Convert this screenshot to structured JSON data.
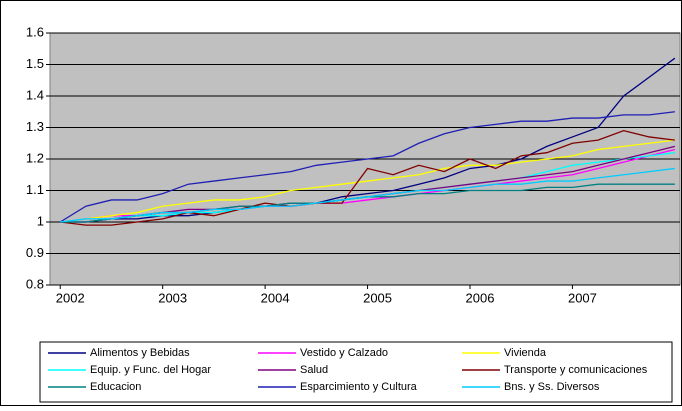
{
  "chart_data": {
    "type": "line",
    "x": [
      2002,
      2002.25,
      2002.5,
      2002.75,
      2003,
      2003.25,
      2003.5,
      2003.75,
      2004,
      2004.25,
      2004.5,
      2004.75,
      2005,
      2005.25,
      2005.5,
      2005.75,
      2006,
      2006.25,
      2006.5,
      2006.75,
      2007,
      2007.25,
      2007.5,
      2007.75,
      2008
    ],
    "xlim": [
      2001.9,
      2008.05
    ],
    "xticks": [
      2002,
      2003,
      2004,
      2005,
      2006,
      2007
    ],
    "ylim": [
      0.8,
      1.6
    ],
    "yticks": [
      0.8,
      0.9,
      1,
      1.1,
      1.2,
      1.3,
      1.4,
      1.5,
      1.6
    ],
    "grid": true,
    "legend": "bottom",
    "series": [
      {
        "name": "Alimentos y Bebidas",
        "color": "#000080",
        "values": [
          1.0,
          1.0,
          1.01,
          1.01,
          1.02,
          1.02,
          1.03,
          1.04,
          1.05,
          1.06,
          1.06,
          1.08,
          1.09,
          1.1,
          1.12,
          1.14,
          1.17,
          1.18,
          1.2,
          1.24,
          1.27,
          1.3,
          1.4,
          1.46,
          1.52
        ]
      },
      {
        "name": "Vestido y Calzado",
        "color": "#ff00ff",
        "values": [
          1.0,
          1.01,
          1.02,
          1.02,
          1.03,
          1.03,
          1.04,
          1.04,
          1.05,
          1.05,
          1.06,
          1.06,
          1.07,
          1.08,
          1.09,
          1.1,
          1.11,
          1.12,
          1.13,
          1.14,
          1.15,
          1.17,
          1.19,
          1.21,
          1.23
        ]
      },
      {
        "name": "Vivienda",
        "color": "#ffff00",
        "values": [
          1.0,
          1.01,
          1.02,
          1.03,
          1.05,
          1.06,
          1.07,
          1.07,
          1.08,
          1.1,
          1.11,
          1.12,
          1.13,
          1.14,
          1.15,
          1.17,
          1.18,
          1.18,
          1.19,
          1.2,
          1.21,
          1.23,
          1.24,
          1.25,
          1.26
        ]
      },
      {
        "name": "Equip. y Func. del Hogar",
        "color": "#00ffff",
        "values": [
          1.0,
          1.01,
          1.01,
          1.02,
          1.02,
          1.03,
          1.03,
          1.04,
          1.05,
          1.06,
          1.06,
          1.07,
          1.08,
          1.09,
          1.1,
          1.11,
          1.12,
          1.13,
          1.14,
          1.16,
          1.18,
          1.19,
          1.2,
          1.21,
          1.22
        ]
      },
      {
        "name": "Salud",
        "color": "#800080",
        "values": [
          1.0,
          1.0,
          1.01,
          1.02,
          1.03,
          1.04,
          1.04,
          1.05,
          1.05,
          1.06,
          1.06,
          1.07,
          1.08,
          1.09,
          1.1,
          1.11,
          1.12,
          1.13,
          1.14,
          1.15,
          1.16,
          1.18,
          1.2,
          1.22,
          1.24
        ]
      },
      {
        "name": "Transporte y comunicaciones",
        "color": "#800000",
        "values": [
          1.0,
          0.99,
          0.99,
          1.0,
          1.01,
          1.03,
          1.02,
          1.04,
          1.06,
          1.05,
          1.06,
          1.06,
          1.17,
          1.15,
          1.18,
          1.16,
          1.2,
          1.17,
          1.21,
          1.22,
          1.25,
          1.26,
          1.29,
          1.27,
          1.26
        ]
      },
      {
        "name": "Educacion",
        "color": "#008080",
        "values": [
          1.0,
          1.0,
          1.01,
          1.02,
          1.03,
          1.03,
          1.04,
          1.05,
          1.05,
          1.06,
          1.06,
          1.07,
          1.08,
          1.08,
          1.09,
          1.09,
          1.1,
          1.1,
          1.1,
          1.11,
          1.11,
          1.12,
          1.12,
          1.12,
          1.12
        ]
      },
      {
        "name": "Esparcimiento y Cultura",
        "color": "#1f1fb4",
        "values": [
          1.0,
          1.05,
          1.07,
          1.07,
          1.09,
          1.12,
          1.13,
          1.14,
          1.15,
          1.16,
          1.18,
          1.19,
          1.2,
          1.21,
          1.25,
          1.28,
          1.3,
          1.31,
          1.32,
          1.32,
          1.33,
          1.33,
          1.34,
          1.34,
          1.35
        ]
      },
      {
        "name": "Bns. y Ss. Diversos",
        "color": "#00ccff",
        "values": [
          1.0,
          1.01,
          1.01,
          1.02,
          1.03,
          1.03,
          1.04,
          1.04,
          1.05,
          1.05,
          1.06,
          1.07,
          1.08,
          1.09,
          1.1,
          1.1,
          1.11,
          1.12,
          1.12,
          1.13,
          1.13,
          1.14,
          1.15,
          1.16,
          1.17
        ]
      }
    ]
  }
}
